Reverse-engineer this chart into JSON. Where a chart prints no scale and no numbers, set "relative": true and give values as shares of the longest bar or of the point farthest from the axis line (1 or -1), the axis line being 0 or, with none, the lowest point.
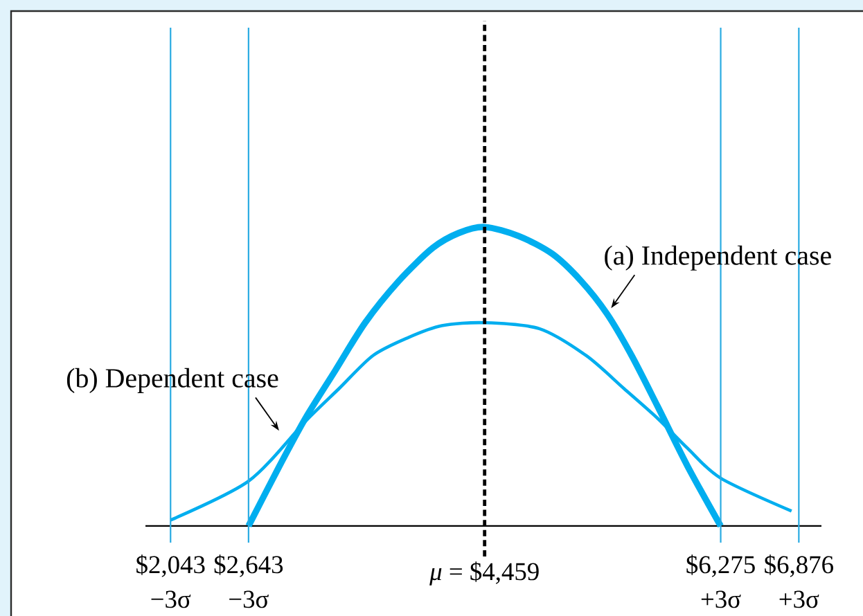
{
  "chart_data": {
    "type": "line",
    "relative": true,
    "xlim": [
      1850,
      7050
    ],
    "xticks": [
      {
        "value": 2043,
        "label": "$2,043"
      },
      {
        "value": 2643,
        "label": "$2,643"
      },
      {
        "value": 6275,
        "label": "$6,275"
      },
      {
        "value": 6876,
        "label": "$6,876"
      }
    ],
    "series": [
      {
        "color": "#00aeef",
        "x": [
          2643,
          2880,
          3080,
          3310,
          3540,
          3800,
          4060,
          4260,
          4459,
          4720,
          4980,
          5200,
          5400,
          5590,
          5790,
          6020,
          6275
        ],
        "values": [
          0,
          0.2,
          0.36,
          0.52,
          0.68,
          0.82,
          0.93,
          0.98,
          1,
          0.97,
          0.91,
          0.82,
          0.71,
          0.57,
          0.4,
          0.2,
          0
        ]
      },
      {
        "color": "#00aeef",
        "x": [
          2043,
          2643,
          3080,
          3340,
          3600,
          3870,
          4130,
          4459,
          4880,
          5240,
          5530,
          5790,
          6020,
          6275,
          6820
        ],
        "values": [
          0.02,
          0.15,
          0.35,
          0.46,
          0.57,
          0.63,
          0.67,
          0.68,
          0.66,
          0.57,
          0.46,
          0.36,
          0.26,
          0.16,
          0.05
        ]
      }
    ],
    "ref_lines": [
      {
        "axis": "x",
        "value": 2043,
        "label": "−3σ",
        "color": "#29abe2"
      },
      {
        "axis": "x",
        "value": 2643,
        "label": "−3σ",
        "color": "#29abe2"
      },
      {
        "axis": "x",
        "value": 6275,
        "label": "+3σ",
        "color": "#29abe2"
      },
      {
        "axis": "x",
        "value": 6876,
        "label": "+3σ",
        "color": "#29abe2"
      },
      {
        "axis": "x",
        "value": 4459,
        "label": "*μ* = $4,459",
        "color": "#000000",
        "line_style": "dashed"
      }
    ],
    "annotations": [
      {
        "text": "(a) Independent case",
        "x": 5400,
        "y": 0.71
      },
      {
        "text": "(b) Dependent case",
        "x": 2910,
        "y": 0.3
      }
    ]
  }
}
